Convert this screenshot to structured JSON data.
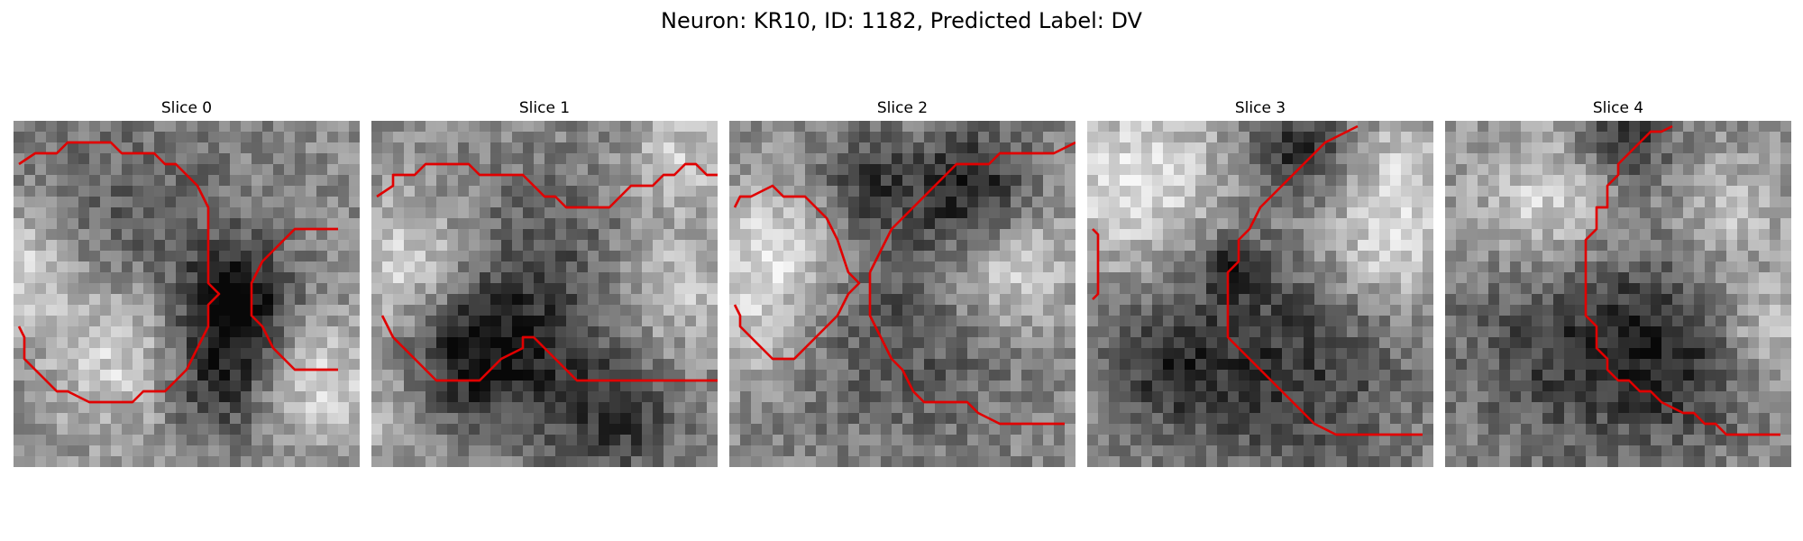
{
  "figure": {
    "title": "Neuron: KR10, ID: 1182, Predicted Label: DV",
    "contour_color": "#e00000",
    "colormap": "grayscale"
  },
  "panels": [
    {
      "title": "Slice 0",
      "dark_regions": [
        [
          20,
          16,
          3.5,
          0.88
        ],
        [
          18,
          23,
          4.0,
          0.78
        ],
        [
          10,
          10,
          8.0,
          0.35
        ]
      ],
      "light_regions": [
        [
          0,
          13,
          4.0,
          0.7
        ],
        [
          10,
          21,
          5.0,
          0.75
        ],
        [
          28,
          24,
          4.0,
          0.6
        ]
      ],
      "contours": [
        [
          [
            0.5,
            4
          ],
          [
            2,
            3
          ],
          [
            4,
            3
          ],
          [
            5,
            2
          ],
          [
            9,
            2
          ],
          [
            10,
            3
          ],
          [
            13,
            3
          ],
          [
            14,
            4
          ],
          [
            15,
            4
          ],
          [
            17,
            6
          ],
          [
            18,
            8
          ],
          [
            18,
            15
          ],
          [
            19,
            16
          ],
          [
            18,
            17
          ],
          [
            18,
            19
          ],
          [
            17,
            21
          ],
          [
            16,
            23
          ],
          [
            15,
            24
          ],
          [
            14,
            25
          ],
          [
            12,
            25
          ],
          [
            11,
            26
          ],
          [
            7,
            26
          ],
          [
            5,
            25
          ],
          [
            4,
            25
          ],
          [
            3,
            24
          ],
          [
            2,
            23
          ],
          [
            1,
            22
          ],
          [
            1,
            20
          ],
          [
            0.5,
            19
          ]
        ],
        [
          [
            30,
            10
          ],
          [
            26,
            10
          ],
          [
            23,
            13
          ],
          [
            22,
            15
          ],
          [
            22,
            18
          ],
          [
            23,
            19
          ],
          [
            24,
            21
          ],
          [
            26,
            23
          ],
          [
            30,
            23
          ]
        ]
      ]
    },
    {
      "title": "Slice 1",
      "dark_regions": [
        [
          9,
          21,
          4.5,
          0.7
        ],
        [
          16,
          16,
          8.0,
          0.5
        ],
        [
          22,
          27,
          4.0,
          0.55
        ]
      ],
      "light_regions": [
        [
          3,
          13,
          4.5,
          0.7
        ],
        [
          27,
          15,
          4.5,
          0.6
        ],
        [
          28,
          3,
          3.5,
          0.5
        ],
        [
          1,
          27,
          3.0,
          0.4
        ]
      ],
      "contours": [
        [
          [
            0.5,
            7
          ],
          [
            2,
            6
          ],
          [
            2,
            5
          ],
          [
            4,
            5
          ],
          [
            5,
            4
          ],
          [
            9,
            4
          ],
          [
            10,
            5
          ],
          [
            14,
            5
          ],
          [
            15,
            6
          ],
          [
            16,
            7
          ],
          [
            17,
            7
          ],
          [
            18,
            8
          ],
          [
            22,
            8
          ],
          [
            23,
            7
          ],
          [
            24,
            6
          ],
          [
            26,
            6
          ],
          [
            27,
            5
          ],
          [
            28,
            5
          ],
          [
            29,
            4
          ],
          [
            30,
            4
          ],
          [
            31,
            5
          ],
          [
            32,
            5
          ]
        ],
        [
          [
            1,
            18
          ],
          [
            2,
            20
          ],
          [
            3,
            21
          ],
          [
            4,
            22
          ],
          [
            5,
            23
          ],
          [
            6,
            24
          ],
          [
            10,
            24
          ],
          [
            11,
            23
          ],
          [
            12,
            22
          ],
          [
            14,
            21
          ],
          [
            14,
            20
          ],
          [
            15,
            20
          ],
          [
            16,
            21
          ],
          [
            17,
            22
          ],
          [
            18,
            23
          ],
          [
            19,
            24
          ],
          [
            30,
            24
          ],
          [
            32,
            24
          ]
        ]
      ]
    },
    {
      "title": "Slice 2",
      "dark_regions": [
        [
          22,
          6,
          4.0,
          0.8
        ],
        [
          16,
          18,
          8.0,
          0.45
        ],
        [
          12,
          5,
          3.0,
          0.5
        ]
      ],
      "light_regions": [
        [
          4,
          12,
          4.5,
          0.75
        ],
        [
          25,
          13,
          4.5,
          0.75
        ],
        [
          2,
          20,
          3.0,
          0.4
        ]
      ],
      "contours": [
        [
          [
            0.5,
            8
          ],
          [
            1,
            7
          ],
          [
            2,
            7
          ],
          [
            4,
            6
          ],
          [
            5,
            7
          ],
          [
            7,
            7
          ],
          [
            8,
            8
          ],
          [
            9,
            9
          ],
          [
            10,
            11
          ],
          [
            11,
            14
          ],
          [
            12,
            15
          ],
          [
            11,
            16
          ],
          [
            10,
            18
          ],
          [
            8,
            20
          ],
          [
            7,
            21
          ],
          [
            6,
            22
          ],
          [
            4,
            22
          ],
          [
            3,
            21
          ],
          [
            2,
            20
          ],
          [
            1,
            19
          ],
          [
            1,
            18
          ],
          [
            0.5,
            17
          ]
        ],
        [
          [
            13,
            14
          ],
          [
            14,
            12
          ],
          [
            15,
            10
          ],
          [
            17,
            8
          ],
          [
            18,
            7
          ],
          [
            19,
            6
          ],
          [
            20,
            5
          ],
          [
            21,
            4
          ],
          [
            24,
            4
          ],
          [
            25,
            3
          ],
          [
            30,
            3
          ],
          [
            32,
            2
          ]
        ],
        [
          [
            13,
            14
          ],
          [
            13,
            18
          ],
          [
            14,
            20
          ],
          [
            15,
            22
          ],
          [
            16,
            23
          ],
          [
            17,
            25
          ],
          [
            18,
            26
          ],
          [
            22,
            26
          ],
          [
            23,
            27
          ],
          [
            25,
            28
          ],
          [
            31,
            28
          ]
        ]
      ]
    },
    {
      "title": "Slice 3",
      "dark_regions": [
        [
          18,
          22,
          8.0,
          0.6
        ],
        [
          19,
          2,
          3.0,
          0.7
        ],
        [
          7,
          22,
          4.0,
          0.5
        ],
        [
          13,
          13,
          2.0,
          0.6
        ]
      ],
      "light_regions": [
        [
          4,
          5,
          5.5,
          0.7
        ],
        [
          27,
          11,
          4.5,
          0.7
        ],
        [
          29,
          3,
          3.0,
          0.4
        ]
      ],
      "contours": [
        [
          [
            25,
            0.5
          ],
          [
            24,
            1
          ],
          [
            22,
            2
          ],
          [
            21,
            3
          ],
          [
            20,
            4
          ],
          [
            19,
            5
          ],
          [
            18,
            6
          ],
          [
            17,
            7
          ],
          [
            16,
            8
          ],
          [
            15,
            10
          ],
          [
            14,
            11
          ],
          [
            14,
            13
          ],
          [
            13,
            14
          ],
          [
            13,
            20
          ],
          [
            14,
            21
          ],
          [
            15,
            22
          ],
          [
            16,
            23
          ],
          [
            17,
            24
          ],
          [
            19,
            26
          ],
          [
            20,
            27
          ],
          [
            21,
            28
          ],
          [
            23,
            29
          ],
          [
            31,
            29
          ]
        ],
        [
          [
            0.5,
            10
          ],
          [
            1,
            10.5
          ],
          [
            1,
            16
          ],
          [
            0.5,
            16.5
          ]
        ]
      ]
    },
    {
      "title": "Slice 4",
      "dark_regions": [
        [
          16,
          1,
          3.0,
          0.7
        ],
        [
          12,
          19,
          8.0,
          0.65
        ],
        [
          22,
          22,
          5.0,
          0.45
        ]
      ],
      "light_regions": [
        [
          9,
          8,
          5.0,
          0.75
        ],
        [
          26,
          8,
          3.5,
          0.45
        ],
        [
          29,
          19,
          3.5,
          0.55
        ]
      ],
      "contours": [
        [
          [
            21,
            0.5
          ],
          [
            20,
            1
          ],
          [
            19,
            1
          ],
          [
            18,
            2
          ],
          [
            17,
            3
          ],
          [
            16,
            4
          ],
          [
            16,
            5
          ],
          [
            15,
            6
          ],
          [
            15,
            8
          ],
          [
            14,
            8
          ],
          [
            14,
            10
          ],
          [
            13,
            11
          ],
          [
            13,
            18
          ],
          [
            14,
            19
          ],
          [
            14,
            21
          ],
          [
            15,
            22
          ],
          [
            15,
            23
          ],
          [
            16,
            24
          ],
          [
            17,
            24
          ],
          [
            18,
            25
          ],
          [
            19,
            25
          ],
          [
            20,
            26
          ],
          [
            22,
            27
          ],
          [
            23,
            27
          ],
          [
            24,
            28
          ],
          [
            25,
            28
          ],
          [
            26,
            29
          ],
          [
            31,
            29
          ]
        ]
      ]
    }
  ]
}
